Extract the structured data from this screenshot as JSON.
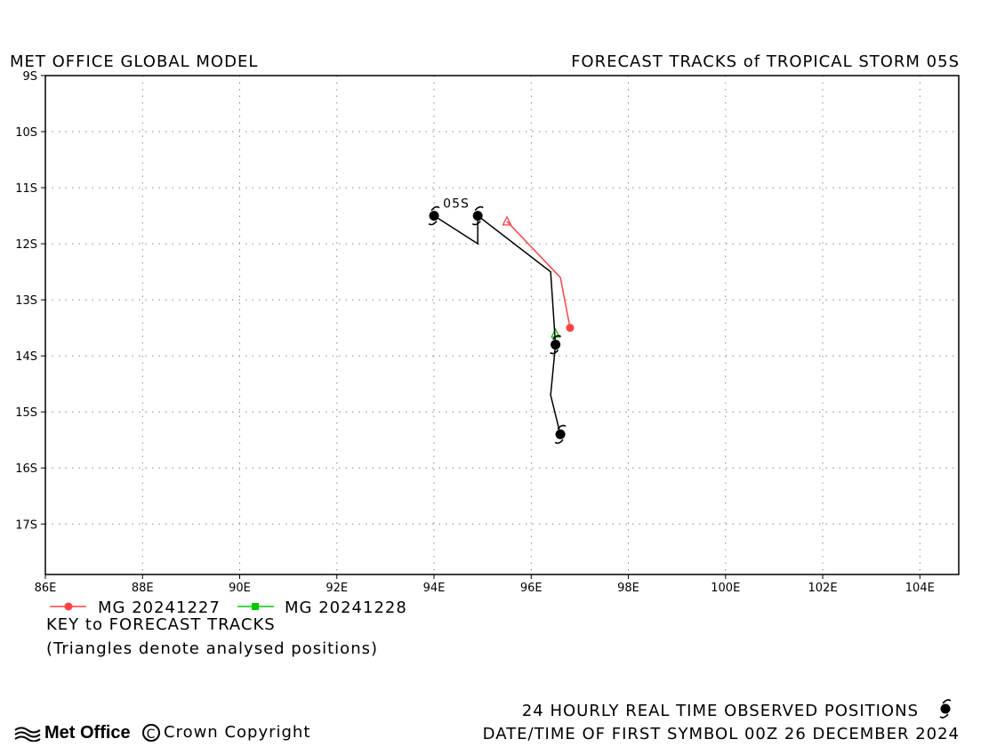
{
  "header": {
    "left_title": "MET OFFICE GLOBAL MODEL",
    "right_title": "FORECAST TRACKS of TROPICAL STORM 05S"
  },
  "map": {
    "lon_range": [
      86,
      104.8
    ],
    "lat_range": [
      -17.9,
      -9
    ],
    "lon_ticks": [
      86,
      88,
      90,
      92,
      94,
      96,
      98,
      100,
      102,
      104
    ],
    "lat_ticks": [
      -9,
      -10,
      -11,
      -12,
      -13,
      -14,
      -15,
      -16,
      -17
    ],
    "lon_tick_labels": [
      "86E",
      "88E",
      "90E",
      "92E",
      "94E",
      "96E",
      "98E",
      "100E",
      "102E",
      "104E"
    ],
    "lat_tick_labels": [
      "9S",
      "10S",
      "11S",
      "12S",
      "13S",
      "14S",
      "15S",
      "16S",
      "17S"
    ],
    "grid": "dotted",
    "storm_label": "05S",
    "colors": {
      "observed": "#000000",
      "mg_20241227": "#ff4040",
      "mg_20241228": "#00cc00"
    }
  },
  "chart_data": {
    "type": "track-map",
    "observed_track": {
      "line": [
        [
          94.0,
          -11.5
        ],
        [
          94.9,
          -12.0
        ],
        [
          94.9,
          -11.5
        ],
        [
          96.4,
          -12.5
        ],
        [
          96.5,
          -13.8
        ],
        [
          96.4,
          -14.7
        ],
        [
          96.6,
          -15.4
        ]
      ],
      "symbols_24h": [
        [
          94.0,
          -11.5
        ],
        [
          94.9,
          -11.5
        ],
        [
          96.5,
          -13.8
        ],
        [
          96.6,
          -15.4
        ]
      ]
    },
    "forecast_tracks": [
      {
        "name": "MG 20241227",
        "color": "#ff4040",
        "marker": "circle",
        "analysis": [
          95.5,
          -11.6
        ],
        "points": [
          [
            95.5,
            -11.6
          ],
          [
            96.6,
            -12.6
          ],
          [
            96.8,
            -13.5
          ]
        ],
        "end": [
          96.8,
          -13.5
        ]
      },
      {
        "name": "MG 20241228",
        "color": "#00cc00",
        "marker": "square",
        "analysis": [
          96.5,
          -13.6
        ],
        "points": [
          [
            96.5,
            -13.6
          ]
        ],
        "end": null
      }
    ]
  },
  "legend": {
    "items": [
      {
        "label": "MG 20241227",
        "color": "#ff4040",
        "marker": "circle"
      },
      {
        "label": "MG 20241228",
        "color": "#00cc00",
        "marker": "square"
      }
    ],
    "key_title": "KEY to FORECAST TRACKS",
    "note": "(Triangles denote analysed positions)"
  },
  "footer": {
    "observed_text": "24 HOURLY REAL TIME OBSERVED POSITIONS",
    "datetime_text": "DATE/TIME OF FIRST SYMBOL 00Z 26 DECEMBER 2024",
    "logo_text": "Met Office",
    "copyright_text": "Crown Copyright",
    "copyright_symbol": "C"
  }
}
